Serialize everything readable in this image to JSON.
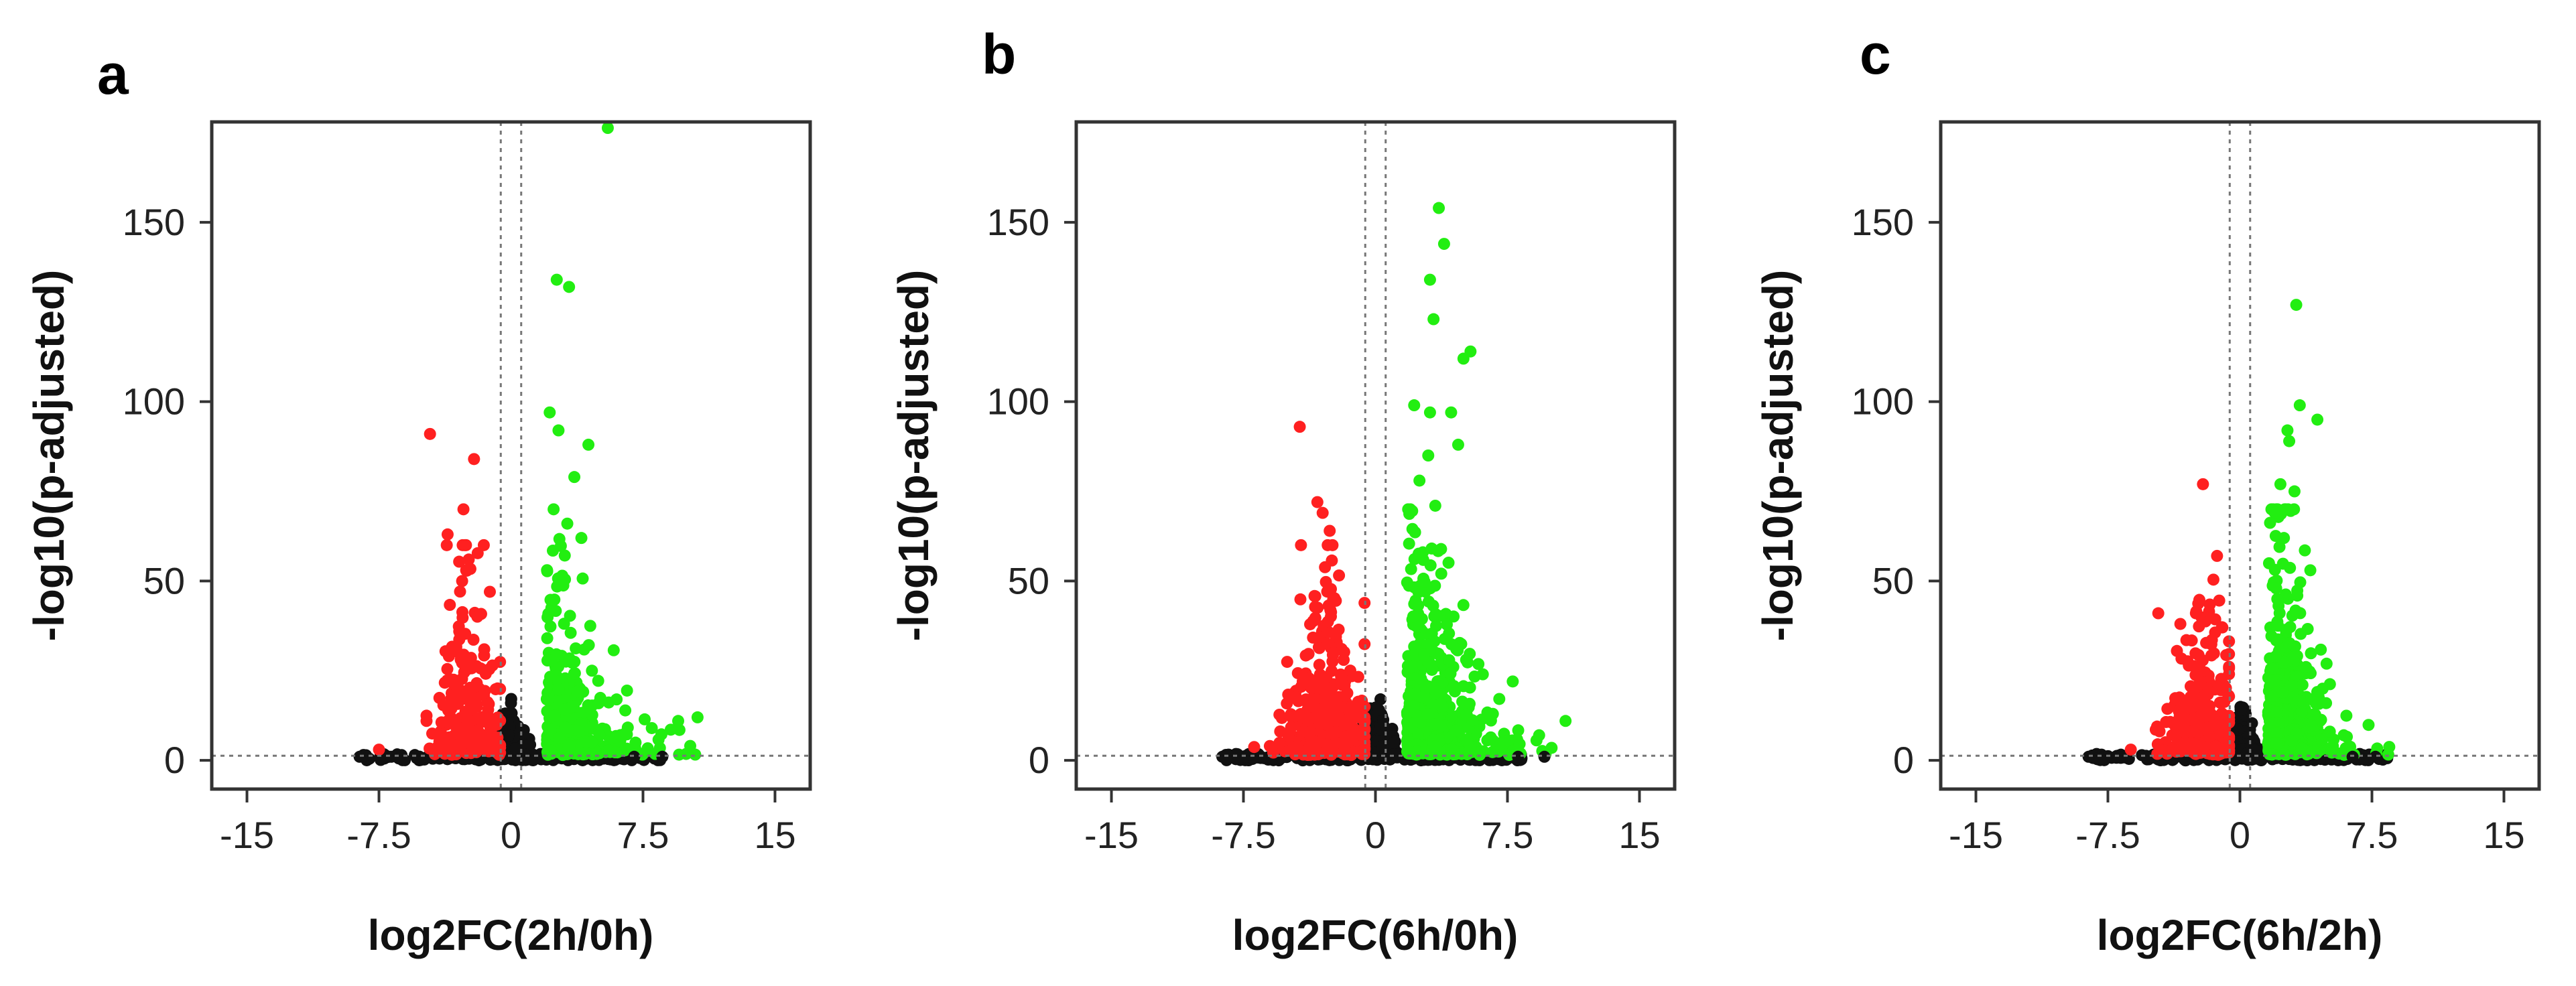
{
  "chart_data": [
    {
      "type": "scatter",
      "panel_label": "a",
      "xlabel": "log2FC(2h/0h)",
      "ylabel": "-log10(p-adjusted)",
      "xlim": [
        -17,
        17
      ],
      "ylim": [
        -8,
        178
      ],
      "x_ticks": [
        -15,
        -7.5,
        0,
        7.5,
        15
      ],
      "x_tick_labels": [
        "-15",
        "-7.5",
        "0",
        "7.5",
        "15"
      ],
      "y_ticks": [
        0,
        50,
        100,
        150
      ],
      "y_tick_labels": [
        "0",
        "50",
        "100",
        "150"
      ],
      "fc_threshold": 0.58,
      "p_threshold": 1.3,
      "colors": {
        "down": "#ff2020",
        "up": "#22ee11",
        "ns": "#111111"
      },
      "cloud": {
        "seed": 11,
        "down_n": 240,
        "down_center": -2.5,
        "down_spread": 1.0,
        "down_scale": 17,
        "up_n": 330,
        "up_center": 2.6,
        "up_spread": 1.5,
        "up_scale": 15,
        "ns_n": 420
      },
      "highlights": [
        {
          "x": 5.5,
          "y": 178,
          "group": "up"
        },
        {
          "x": 2.6,
          "y": 134,
          "group": "up"
        },
        {
          "x": 3.3,
          "y": 132,
          "group": "up"
        },
        {
          "x": 2.2,
          "y": 97,
          "group": "up"
        },
        {
          "x": 2.7,
          "y": 92,
          "group": "up"
        },
        {
          "x": 4.4,
          "y": 88,
          "group": "up"
        },
        {
          "x": 3.6,
          "y": 79,
          "group": "up"
        },
        {
          "x": 4.0,
          "y": 62,
          "group": "up"
        },
        {
          "x": 3.2,
          "y": 66,
          "group": "up"
        },
        {
          "x": 4.6,
          "y": 25,
          "group": "up"
        },
        {
          "x": 6.0,
          "y": 17,
          "group": "up"
        },
        {
          "x": 8.0,
          "y": 9,
          "group": "up"
        },
        {
          "x": 9.5,
          "y": 11,
          "group": "up"
        },
        {
          "x": 10.6,
          "y": 12,
          "group": "up"
        },
        {
          "x": -4.6,
          "y": 91,
          "group": "down"
        },
        {
          "x": -2.1,
          "y": 84,
          "group": "down"
        },
        {
          "x": -2.7,
          "y": 70,
          "group": "down"
        },
        {
          "x": -3.6,
          "y": 63,
          "group": "down"
        },
        {
          "x": -2.4,
          "y": 56,
          "group": "down"
        },
        {
          "x": -1.2,
          "y": 47,
          "group": "down"
        },
        {
          "x": -7.5,
          "y": 3,
          "group": "down"
        },
        {
          "x": -8.6,
          "y": 1,
          "group": "ns"
        },
        {
          "x": -6.8,
          "y": 1,
          "group": "ns"
        },
        {
          "x": 7.0,
          "y": 1,
          "group": "ns"
        },
        {
          "x": 8.6,
          "y": 1,
          "group": "ns"
        }
      ]
    },
    {
      "type": "scatter",
      "panel_label": "b",
      "xlabel": "log2FC(6h/0h)",
      "ylabel": "-log10(p-adjusted)",
      "xlim": [
        -17,
        17
      ],
      "ylim": [
        -8,
        178
      ],
      "x_ticks": [
        -15,
        -7.5,
        0,
        7.5,
        15
      ],
      "x_tick_labels": [
        "-15",
        "-7.5",
        "0",
        "7.5",
        "15"
      ],
      "y_ticks": [
        0,
        50,
        100,
        150
      ],
      "y_tick_labels": [
        "0",
        "50",
        "100",
        "150"
      ],
      "fc_threshold": 0.58,
      "p_threshold": 1.3,
      "colors": {
        "down": "#ff2020",
        "up": "#22ee11",
        "ns": "#111111"
      },
      "cloud": {
        "seed": 23,
        "down_n": 380,
        "down_center": -2.8,
        "down_spread": 1.2,
        "down_scale": 15,
        "up_n": 560,
        "up_center": 2.4,
        "up_spread": 1.4,
        "up_scale": 18,
        "ns_n": 500
      },
      "highlights": [
        {
          "x": 3.6,
          "y": 154,
          "group": "up"
        },
        {
          "x": 3.9,
          "y": 144,
          "group": "up"
        },
        {
          "x": 3.1,
          "y": 134,
          "group": "up"
        },
        {
          "x": 3.3,
          "y": 123,
          "group": "up"
        },
        {
          "x": 5.4,
          "y": 114,
          "group": "up"
        },
        {
          "x": 5.0,
          "y": 112,
          "group": "up"
        },
        {
          "x": 2.2,
          "y": 99,
          "group": "up"
        },
        {
          "x": 3.1,
          "y": 97,
          "group": "up"
        },
        {
          "x": 4.3,
          "y": 97,
          "group": "up"
        },
        {
          "x": 4.7,
          "y": 88,
          "group": "up"
        },
        {
          "x": 3.0,
          "y": 85,
          "group": "up"
        },
        {
          "x": 2.5,
          "y": 78,
          "group": "up"
        },
        {
          "x": 3.4,
          "y": 71,
          "group": "up"
        },
        {
          "x": 6.1,
          "y": 24,
          "group": "up"
        },
        {
          "x": 7.8,
          "y": 22,
          "group": "up"
        },
        {
          "x": 9.3,
          "y": 7,
          "group": "up"
        },
        {
          "x": 10.8,
          "y": 11,
          "group": "up"
        },
        {
          "x": -4.3,
          "y": 93,
          "group": "down"
        },
        {
          "x": -3.3,
          "y": 72,
          "group": "down"
        },
        {
          "x": -3.0,
          "y": 69,
          "group": "down"
        },
        {
          "x": -2.6,
          "y": 64,
          "group": "down"
        },
        {
          "x": -6.0,
          "y": 4,
          "group": "down"
        },
        {
          "x": -8.7,
          "y": 1,
          "group": "ns"
        },
        {
          "x": -7.5,
          "y": 1,
          "group": "ns"
        },
        {
          "x": 8.1,
          "y": 1,
          "group": "ns"
        },
        {
          "x": 9.6,
          "y": 1,
          "group": "ns"
        }
      ]
    },
    {
      "type": "scatter",
      "panel_label": "c",
      "xlabel": "log2FC(6h/2h)",
      "ylabel": "-log10(p-adjusted)",
      "xlim": [
        -17,
        17
      ],
      "ylim": [
        -8,
        178
      ],
      "x_ticks": [
        -15,
        -7.5,
        0,
        7.5,
        15
      ],
      "x_tick_labels": [
        "-15",
        "-7.5",
        "0",
        "7.5",
        "15"
      ],
      "y_ticks": [
        0,
        50,
        100,
        150
      ],
      "y_tick_labels": [
        "0",
        "50",
        "100",
        "150"
      ],
      "fc_threshold": 0.58,
      "p_threshold": 1.3,
      "colors": {
        "down": "#ff2020",
        "up": "#22ee11",
        "ns": "#111111"
      },
      "cloud": {
        "seed": 37,
        "down_n": 280,
        "down_center": -2.2,
        "down_spread": 1.0,
        "down_scale": 14,
        "up_n": 480,
        "up_center": 2.2,
        "up_spread": 1.1,
        "up_scale": 17,
        "ns_n": 440
      },
      "highlights": [
        {
          "x": 3.2,
          "y": 127,
          "group": "up"
        },
        {
          "x": 3.4,
          "y": 99,
          "group": "up"
        },
        {
          "x": 4.4,
          "y": 95,
          "group": "up"
        },
        {
          "x": 2.7,
          "y": 92,
          "group": "up"
        },
        {
          "x": 2.8,
          "y": 89,
          "group": "up"
        },
        {
          "x": 2.3,
          "y": 77,
          "group": "up"
        },
        {
          "x": 3.1,
          "y": 75,
          "group": "up"
        },
        {
          "x": 2.0,
          "y": 69,
          "group": "up"
        },
        {
          "x": 2.5,
          "y": 62,
          "group": "up"
        },
        {
          "x": 4.0,
          "y": 53,
          "group": "up"
        },
        {
          "x": 5.9,
          "y": 7,
          "group": "up"
        },
        {
          "x": -2.1,
          "y": 77,
          "group": "down"
        },
        {
          "x": -1.3,
          "y": 57,
          "group": "down"
        },
        {
          "x": -2.5,
          "y": 41,
          "group": "down"
        },
        {
          "x": -6.2,
          "y": 3,
          "group": "down"
        },
        {
          "x": -8.6,
          "y": 1,
          "group": "ns"
        },
        {
          "x": -6.9,
          "y": 1,
          "group": "ns"
        },
        {
          "x": 6.4,
          "y": 1,
          "group": "ns"
        },
        {
          "x": 7.7,
          "y": 1,
          "group": "ns"
        }
      ]
    }
  ]
}
